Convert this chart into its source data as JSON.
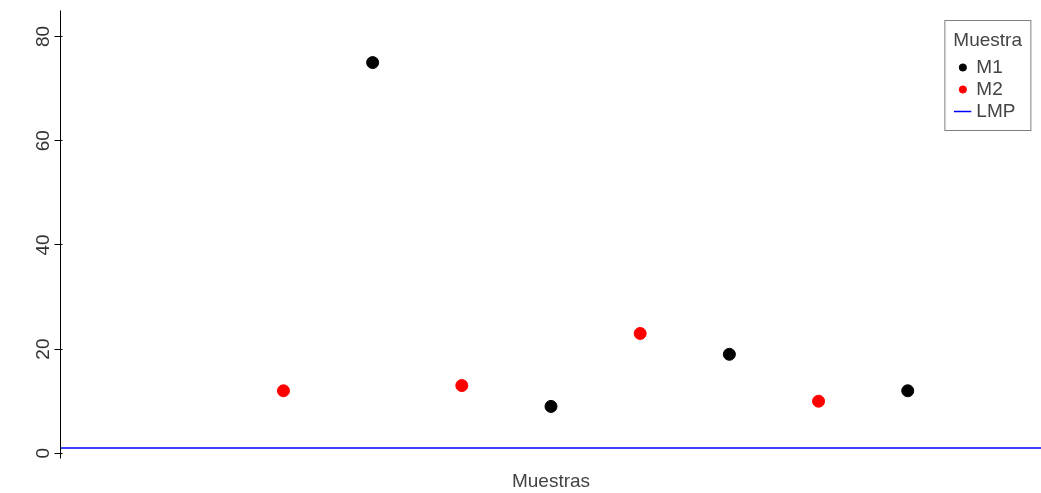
{
  "chart_data": {
    "type": "scatter",
    "xlabel": "Muestras",
    "legend_title": "Muestra",
    "categories": [
      null,
      null,
      null,
      null,
      null,
      null,
      null,
      null,
      null,
      null,
      null
    ],
    "series": [
      {
        "name": "M1",
        "color": "#000000",
        "values": [
          null,
          null,
          null,
          75,
          null,
          9,
          null,
          19,
          null,
          12,
          null
        ]
      },
      {
        "name": "M2",
        "color": "#ff0000",
        "values": [
          null,
          null,
          12,
          null,
          13,
          null,
          23,
          null,
          10,
          null,
          null
        ]
      }
    ],
    "ref_lines": [
      {
        "axis": "y",
        "value": 1,
        "label": "LMP",
        "color": "#0000ff"
      }
    ],
    "ylim": [
      -1,
      85
    ],
    "yticks": [
      0,
      20,
      40,
      60,
      80
    ],
    "tick_labels": "y",
    "grid": false,
    "legend": "top right",
    "marker": "circle"
  }
}
